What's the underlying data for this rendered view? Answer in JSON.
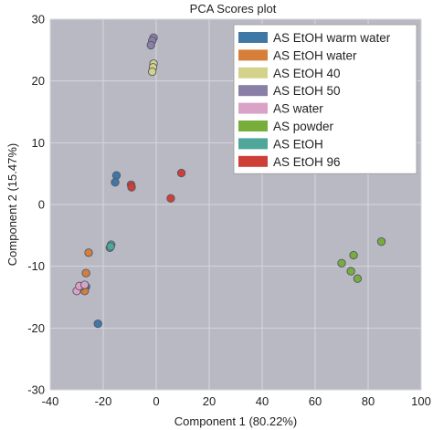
{
  "chart_data": {
    "type": "scatter",
    "title": "PCA Scores plot",
    "xlabel": "Component 1 (80.22%)",
    "ylabel": "Component 2 (15.47%)",
    "xlim": [
      -40,
      100
    ],
    "ylim": [
      -30,
      30
    ],
    "xticks": [
      -40,
      -20,
      0,
      20,
      40,
      60,
      80,
      100
    ],
    "yticks": [
      -30,
      -20,
      -10,
      0,
      10,
      20,
      30
    ],
    "grid": true,
    "legend_position": "top-right",
    "colors": {
      "plot_background": "#b9b9c3",
      "grid": "#d6d6de",
      "legend_background": "#ffffff"
    },
    "series": [
      {
        "name": "AS EtOH warm water",
        "color": "#3f78a5",
        "points": [
          [
            -15,
            4.7
          ],
          [
            -15.5,
            3.6
          ],
          [
            -22,
            -19.3
          ],
          [
            -26.5,
            -13.3
          ]
        ]
      },
      {
        "name": "AS EtOH water",
        "color": "#d57f3b",
        "points": [
          [
            -25.5,
            -7.8
          ],
          [
            -26.5,
            -11.1
          ],
          [
            -27,
            -14
          ],
          [
            -28.5,
            -13.3
          ]
        ]
      },
      {
        "name": "AS EtOH 40",
        "color": "#d3d28a",
        "points": [
          [
            -1,
            22.8
          ],
          [
            -1.2,
            22.2
          ],
          [
            -1.5,
            21.5
          ]
        ]
      },
      {
        "name": "AS EtOH 50",
        "color": "#8a80a7",
        "points": [
          [
            -1,
            27
          ],
          [
            -1.5,
            26.5
          ],
          [
            -2,
            25.8
          ]
        ]
      },
      {
        "name": "AS water",
        "color": "#d9a3c6",
        "points": [
          [
            -30,
            -14
          ],
          [
            -29,
            -13.2
          ],
          [
            -27,
            -13
          ]
        ]
      },
      {
        "name": "AS powder",
        "color": "#77ae3b",
        "points": [
          [
            85,
            -6
          ],
          [
            74.5,
            -8.2
          ],
          [
            70,
            -9.5
          ],
          [
            73.5,
            -10.8
          ],
          [
            76,
            -12
          ]
        ]
      },
      {
        "name": "AS EtOH",
        "color": "#4ea79a",
        "points": [
          [
            -17,
            -6.5
          ],
          [
            -17.5,
            -7
          ],
          [
            -17.2,
            -6.8
          ]
        ]
      },
      {
        "name": "AS EtOH 96",
        "color": "#cd3f37",
        "points": [
          [
            9.5,
            5.1
          ],
          [
            5.5,
            1
          ],
          [
            -9.5,
            3.2
          ],
          [
            -9.3,
            2.8
          ]
        ]
      }
    ]
  }
}
